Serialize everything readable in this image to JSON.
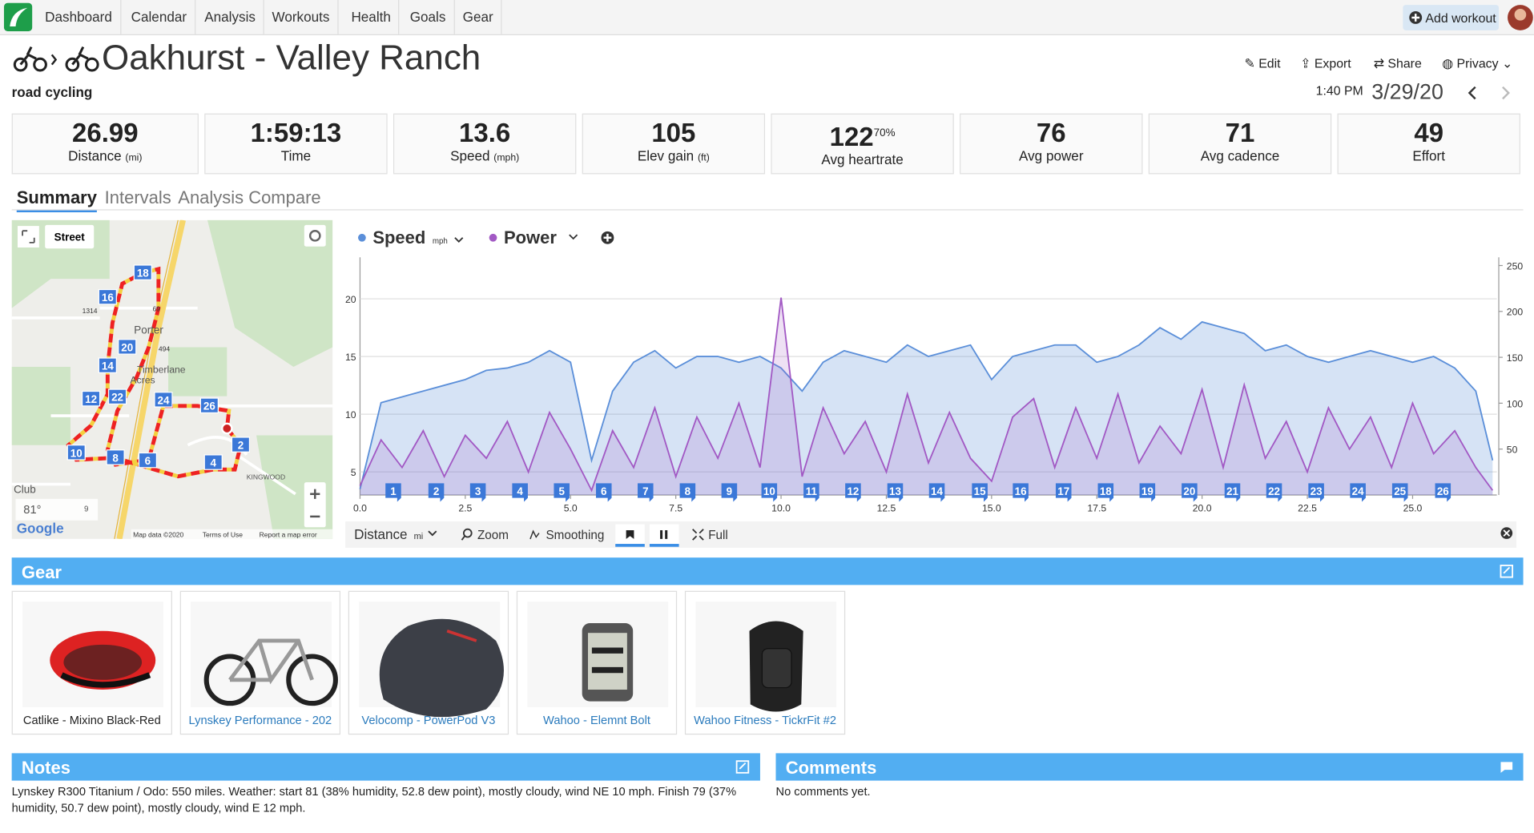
{
  "nav": {
    "items": [
      "Dashboard",
      "Calendar",
      "Analysis",
      "Workouts",
      "Health",
      "Goals",
      "Gear"
    ],
    "add_workout": "Add workout"
  },
  "header": {
    "title": "Oakhurst - Valley Ranch",
    "sport": "road cycling",
    "actions": [
      "Edit",
      "Export",
      "Share",
      "Privacy"
    ],
    "time": "1:40 PM",
    "date": "3/29/20"
  },
  "stats": [
    {
      "value": "26.99",
      "label": "Distance",
      "unit": "(mi)"
    },
    {
      "value": "1:59:13",
      "label": "Time"
    },
    {
      "value": "13.6",
      "label": "Speed",
      "unit": "(mph)"
    },
    {
      "value": "105",
      "label": "Elev gain",
      "unit": "(ft)"
    },
    {
      "value": "122",
      "label": "Avg heartrate",
      "extra": "70%"
    },
    {
      "value": "76",
      "label": "Avg power"
    },
    {
      "value": "71",
      "label": "Avg cadence"
    },
    {
      "value": "49",
      "label": "Effort"
    }
  ],
  "tabs": [
    "Summary",
    "Intervals",
    "Analysis",
    "Compare"
  ],
  "map": {
    "layer": "Street",
    "markers": [
      18,
      16,
      20,
      14,
      12,
      22,
      24,
      26,
      2,
      10,
      8,
      6,
      4
    ],
    "places": [
      "Porter",
      "Timberlane",
      "Acres",
      "Club",
      "KINGWOOD"
    ],
    "roads": [
      "1314",
      "494",
      "69"
    ],
    "temperature": "81°",
    "wind": "9",
    "attribution": [
      "Google",
      "Map data ©2020",
      "Terms of Use",
      "Report a map error"
    ]
  },
  "chart_data": {
    "type": "line",
    "x": [
      0,
      0.5,
      1,
      1.5,
      2,
      2.5,
      3,
      3.5,
      4,
      4.5,
      5,
      5.5,
      6,
      6.5,
      7,
      7.5,
      8,
      8.5,
      9,
      9.5,
      10,
      10.5,
      11,
      11.5,
      12,
      12.5,
      13,
      13.5,
      14,
      14.5,
      15,
      15.5,
      16,
      16.5,
      17,
      17.5,
      18,
      18.5,
      19,
      19.5,
      20,
      20.5,
      21,
      21.5,
      22,
      22.5,
      23,
      23.5,
      24,
      24.5,
      25,
      25.5,
      26,
      26.5,
      26.9
    ],
    "series": [
      {
        "name": "Speed",
        "unit": "mph",
        "color": "#5b8fd9",
        "fill": "rgba(91,143,217,0.25)",
        "values": [
          3.5,
          11,
          11.5,
          12,
          12.5,
          13,
          13.8,
          14,
          14.5,
          15.5,
          14.5,
          6,
          12,
          14.5,
          15.5,
          14,
          15,
          15,
          14.5,
          15,
          14,
          12,
          14.5,
          15.5,
          15,
          14.5,
          16,
          15,
          15.5,
          16,
          13,
          15,
          15.5,
          16,
          16,
          14.5,
          15,
          16,
          17.5,
          16.5,
          18,
          17.5,
          17,
          15.5,
          16,
          15,
          14.5,
          15,
          15.5,
          15,
          14.5,
          15,
          14,
          12,
          6
        ]
      },
      {
        "name": "Power",
        "color": "#a259c4",
        "fill": "rgba(162,89,196,0.18)",
        "axis": "y2",
        "values": [
          10,
          60,
          30,
          70,
          20,
          65,
          40,
          80,
          25,
          90,
          50,
          5,
          70,
          30,
          95,
          20,
          85,
          40,
          100,
          30,
          215,
          20,
          95,
          45,
          80,
          25,
          110,
          35,
          90,
          40,
          15,
          85,
          105,
          30,
          95,
          40,
          110,
          35,
          75,
          45,
          115,
          30,
          120,
          40,
          80,
          25,
          95,
          50,
          85,
          30,
          100,
          45,
          70,
          30,
          5
        ]
      }
    ],
    "xlim": [
      0,
      27
    ],
    "xticks": [
      {
        "value": 0,
        "label": "0.0"
      },
      2.5,
      {
        "value": 5,
        "label": "5.0"
      },
      7.5,
      {
        "value": 10,
        "label": "10.0"
      },
      12.5,
      {
        "value": 15,
        "label": "15.0"
      },
      17.5,
      {
        "value": 20,
        "label": "20.0"
      },
      22.5,
      {
        "value": 25,
        "label": "25.0"
      }
    ],
    "ylim": [
      3,
      23.6
    ],
    "yticks": [
      5,
      10,
      15,
      20
    ],
    "y2lim": [
      0,
      259
    ],
    "y2ticks": [
      50,
      100,
      150,
      200,
      250
    ],
    "grid": true,
    "lap_markers": {
      "labels": [
        1,
        2,
        3,
        4,
        5,
        6,
        7,
        8,
        9,
        10,
        11,
        12,
        13,
        14,
        15,
        16,
        17,
        18,
        19,
        20,
        21,
        22,
        23,
        24,
        25,
        26
      ],
      "x": [
        0.79,
        1.81,
        2.8,
        3.8,
        4.79,
        5.79,
        6.78,
        7.78,
        8.77,
        9.72,
        10.72,
        11.71,
        12.71,
        13.7,
        14.72,
        15.69,
        16.71,
        17.71,
        18.7,
        19.7,
        20.72,
        21.71,
        22.71,
        23.7,
        24.7,
        25.72
      ]
    },
    "toolbar": {
      "x_axis": "Distance",
      "x_unit": "mi",
      "buttons": [
        "Zoom",
        "Smoothing",
        "Full"
      ]
    }
  },
  "gear": {
    "title": "Gear",
    "items": [
      "Catlike - Mixino Black-Red",
      "Lynskey Performance - 202",
      "Velocomp - PowerPod V3",
      "Wahoo - Elemnt Bolt",
      "Wahoo Fitness - TickrFit #2"
    ]
  },
  "notes": {
    "title": "Notes",
    "text": "Lynskey R300 Titanium / Odo: 550 miles. Weather: start 81 (38% humidity, 52.8 dew point), mostly cloudy, wind NE 10 mph. Finish 79 (37% humidity, 50.7 dew point), mostly cloudy, wind E 12 mph."
  },
  "comments": {
    "title": "Comments",
    "text": "No comments yet."
  }
}
